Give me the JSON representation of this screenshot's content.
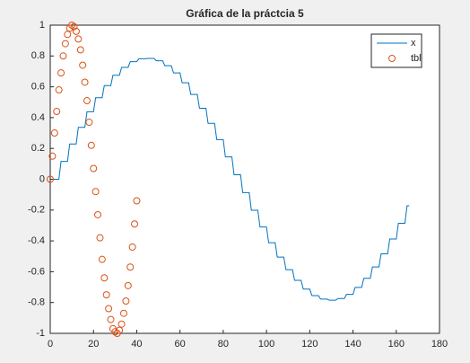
{
  "chart_data": {
    "type": "line",
    "title": "Gráfica de la práctcia 5",
    "xlim": [
      0,
      180
    ],
    "xticks": [
      0,
      20,
      40,
      60,
      80,
      100,
      120,
      140,
      160,
      180
    ],
    "ylim": [
      -1,
      1
    ],
    "yticks": [
      -1,
      -0.8,
      -0.6,
      -0.4,
      -0.2,
      0,
      0.2,
      0.4,
      0.6,
      0.8,
      1
    ],
    "grid": false,
    "legend": "northeast",
    "series": [
      {
        "name": "x",
        "color": "#0072bd",
        "style": "line",
        "x": [
          1,
          4,
          5,
          8,
          9,
          12,
          13,
          16,
          17,
          20,
          21,
          24,
          25,
          28,
          29,
          32,
          33,
          36,
          37,
          40,
          41,
          44,
          45,
          48,
          49,
          52,
          53,
          56,
          57,
          60,
          61,
          64,
          65,
          68,
          69,
          72,
          73,
          76,
          77,
          80,
          81,
          84,
          85,
          88,
          89,
          92,
          93,
          96,
          97,
          100,
          101,
          104,
          105,
          108,
          109,
          112,
          113,
          116,
          117,
          120,
          121,
          124,
          125,
          128,
          129,
          132,
          133,
          136,
          137,
          140,
          141,
          144,
          145,
          148,
          149,
          152,
          153,
          156,
          157,
          160,
          161,
          164,
          165,
          166
        ],
        "values": [
          0,
          0,
          0.116,
          0.116,
          0.229,
          0.229,
          0.337,
          0.337,
          0.438,
          0.438,
          0.529,
          0.529,
          0.608,
          0.608,
          0.675,
          0.675,
          0.726,
          0.726,
          0.763,
          0.763,
          0.782,
          0.782,
          0.784,
          0.784,
          0.769,
          0.769,
          0.737,
          0.737,
          0.69,
          0.69,
          0.626,
          0.626,
          0.55,
          0.55,
          0.461,
          0.461,
          0.363,
          0.363,
          0.257,
          0.257,
          0.145,
          0.145,
          0.029,
          0.029,
          -0.087,
          -0.087,
          -0.201,
          -0.201,
          -0.31,
          -0.31,
          -0.412,
          -0.412,
          -0.505,
          -0.505,
          -0.587,
          -0.587,
          -0.656,
          -0.656,
          -0.713,
          -0.713,
          -0.755,
          -0.755,
          -0.778,
          -0.778,
          -0.785,
          -0.785,
          -0.774,
          -0.774,
          -0.747,
          -0.747,
          -0.702,
          -0.702,
          -0.643,
          -0.643,
          -0.569,
          -0.569,
          -0.484,
          -0.484,
          -0.388,
          -0.388,
          -0.286,
          -0.286,
          -0.172,
          -0.172
        ]
      },
      {
        "name": "tbl",
        "color": "#d95319",
        "style": "markers",
        "x": [
          0,
          1,
          2,
          3,
          4,
          5,
          6,
          7,
          8,
          9,
          10,
          11,
          12,
          13,
          14,
          15,
          16,
          17,
          18,
          19,
          20,
          21,
          22,
          23,
          24,
          25,
          26,
          27,
          28,
          29,
          30,
          31,
          32,
          33,
          34,
          35,
          36,
          37,
          38,
          39,
          40
        ],
        "values": [
          0,
          0.15,
          0.3,
          0.44,
          0.58,
          0.69,
          0.8,
          0.88,
          0.94,
          0.98,
          1,
          0.99,
          0.96,
          0.91,
          0.84,
          0.74,
          0.63,
          0.51,
          0.37,
          0.22,
          0.07,
          -0.08,
          -0.23,
          -0.38,
          -0.52,
          -0.64,
          -0.75,
          -0.84,
          -0.91,
          -0.97,
          -0.99,
          -1,
          -0.98,
          -0.94,
          -0.87,
          -0.79,
          -0.69,
          -0.57,
          -0.44,
          -0.29,
          -0.14
        ]
      }
    ]
  }
}
